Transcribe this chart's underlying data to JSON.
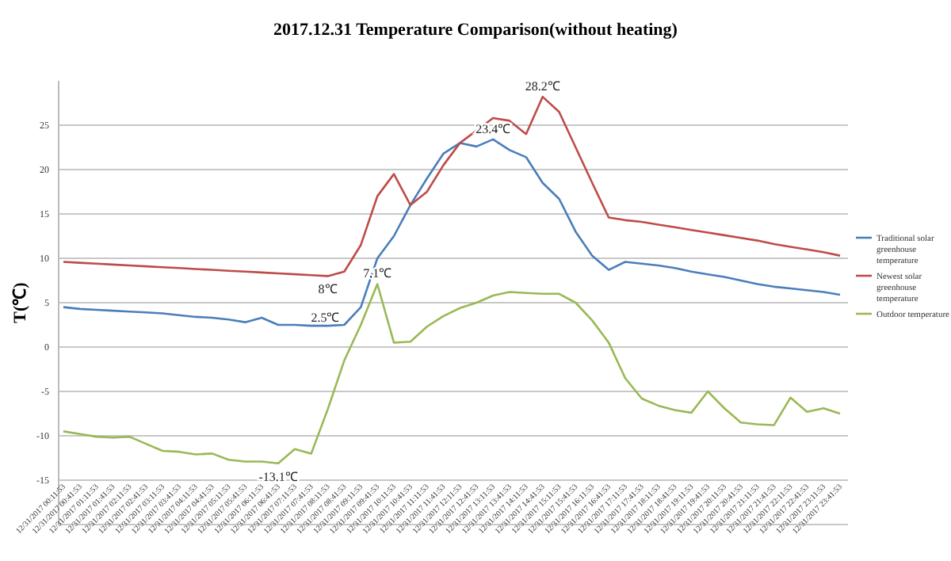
{
  "chart_data": {
    "type": "line",
    "title": "2017.12.31 Temperature Comparison(without  heating)",
    "ylabel": "T(℃)",
    "categories": [
      "12/31/2017 00:11:53",
      "12/31/2017 00:41:53",
      "12/31/2017 01:11:53",
      "12/31/2017 01:41:53",
      "12/31/2017 02:11:53",
      "12/31/2017 02:41:53",
      "12/31/2017 03:11:53",
      "12/31/2017 03:41:53",
      "12/31/2017 04:11:53",
      "12/31/2017 04:41:53",
      "12/31/2017 05:11:53",
      "12/31/2017 05:41:53",
      "12/31/2017 06:11:53",
      "12/31/2017 06:41:53",
      "12/31/2017 07:11:53",
      "12/31/2017 07:41:53",
      "12/31/2017 08:11:53",
      "12/31/2017 08:41:53",
      "12/31/2017 09:11:53",
      "12/31/2017 09:41:53",
      "12/31/2017 10:11:53",
      "12/31/2017 10:41:53",
      "12/31/2017 11:11:53",
      "12/31/2017 11:41:53",
      "12/31/2017 12:11:53",
      "12/31/2017 12:41:53",
      "12/31/2017 13:11:53",
      "12/31/2017 13:41:53",
      "12/31/2017 14:11:53",
      "12/31/2017 14:41:53",
      "12/31/2017 15:11:53",
      "12/31/2017 15:41:53",
      "12/31/2017 16:11:53",
      "12/31/2017 16:41:53",
      "12/31/2017 17:11:53",
      "12/31/2017 17:41:53",
      "12/31/2017 18:11:53",
      "12/31/2017 18:41:53",
      "12/31/2017 19:11:53",
      "12/31/2017 19:41:53",
      "12/31/2017 20:11:53",
      "12/31/2017 20:41:53",
      "12/31/2017 21:11:53",
      "12/31/2017 21:41:53",
      "12/31/2017 22:11:53",
      "12/31/2017 22:41:53",
      "12/31/2017 23:11:53",
      "12/31/2017 23:41:53"
    ],
    "series": [
      {
        "name": "Traditional solar greenhouse temperature",
        "color": "#4a7ebb",
        "values": [
          4.5,
          4.3,
          4.2,
          4.1,
          4.0,
          3.9,
          3.8,
          3.6,
          3.4,
          3.3,
          3.1,
          2.8,
          3.3,
          2.5,
          2.5,
          2.4,
          2.4,
          2.5,
          4.5,
          10,
          12.5,
          16,
          19,
          21.8,
          23,
          22.6,
          23.4,
          22.2,
          21.4,
          18.5,
          16.7,
          13,
          10.3,
          8.7,
          9.6,
          9.4,
          9.2,
          8.9,
          8.5,
          8.2,
          7.9,
          7.5,
          7.1,
          6.8,
          6.6,
          6.4,
          6.2,
          5.9
        ]
      },
      {
        "name": "Newest solar greenhouse temperature",
        "color": "#be4b48",
        "values": [
          9.6,
          9.5,
          9.4,
          9.3,
          9.2,
          9.1,
          9.0,
          8.9,
          8.8,
          8.7,
          8.6,
          8.5,
          8.4,
          8.3,
          8.2,
          8.1,
          8.0,
          8.5,
          11.5,
          17,
          19.5,
          16,
          17.5,
          20.5,
          23,
          24.4,
          25.8,
          25.5,
          24,
          28.2,
          26.5,
          22.5,
          18.5,
          14.6,
          14.3,
          14.1,
          13.8,
          13.5,
          13.2,
          12.9,
          12.6,
          12.3,
          12.0,
          11.6,
          11.3,
          11.0,
          10.7,
          10.3
        ]
      },
      {
        "name": "Outdoor temperature",
        "color": "#98b954",
        "values": [
          -9.5,
          -9.8,
          -10.1,
          -10.2,
          -10.1,
          -10.9,
          -11.7,
          -11.8,
          -12.1,
          -12.0,
          -12.7,
          -12.9,
          -12.9,
          -13.1,
          -11.5,
          -12.0,
          -7,
          -1.5,
          2.5,
          7.1,
          0.5,
          0.6,
          2.3,
          3.5,
          4.4,
          5,
          5.8,
          6.2,
          6.1,
          6,
          6,
          5,
          3,
          0.5,
          -3.5,
          -5.8,
          -6.6,
          -7.1,
          -7.4,
          -5,
          -6.9,
          -8.5,
          -8.7,
          -8.8,
          -5.7,
          -7.3,
          -6.9,
          -7.5
        ]
      }
    ],
    "ylim": [
      -20,
      30
    ],
    "yticks": [
      {
        "value": -20,
        "label": null
      },
      -15,
      -10,
      -5,
      0,
      5,
      10,
      15,
      20,
      25
    ],
    "grid": "y",
    "legend": "right",
    "marker": "none",
    "line_style": "solid",
    "annotations": [
      {
        "text": "8℃",
        "x": "12/31/2017 08:11:53",
        "y": 8
      },
      {
        "text": "2.5℃",
        "x": "12/31/2017 08:41:53",
        "y": 2.5
      },
      {
        "text": "7.1℃",
        "x": "12/31/2017 09:41:53",
        "y": 7.1
      },
      {
        "text": "23.4℃",
        "x": "12/31/2017 13:11:53",
        "y": 23.4
      },
      {
        "text": "28.2℃",
        "x": "12/31/2017 14:41:53",
        "y": 28.2
      },
      {
        "text": "-13.1℃",
        "x": "12/31/2017 06:41:53",
        "y": -13.1
      }
    ]
  }
}
